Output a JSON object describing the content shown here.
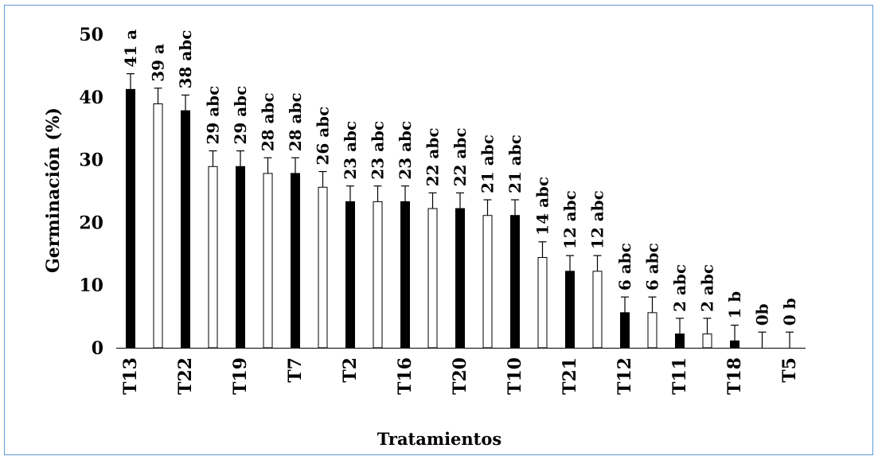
{
  "chart_data": {
    "type": "bar",
    "xlabel": "Tratamientos",
    "ylabel": "Germinación (%)",
    "ylim": [
      0,
      50
    ],
    "yticks": [
      0,
      10,
      20,
      30,
      40,
      50
    ],
    "grid": false,
    "bars": [
      {
        "value": 41.2,
        "error": 2.5,
        "label": "41 a",
        "fill": "black"
      },
      {
        "value": 38.9,
        "error": 2.5,
        "label": "39 a",
        "fill": "white"
      },
      {
        "value": 37.8,
        "error": 2.5,
        "label": "38 abc",
        "fill": "black"
      },
      {
        "value": 28.9,
        "error": 2.5,
        "label": "29 abc",
        "fill": "white"
      },
      {
        "value": 28.9,
        "error": 2.5,
        "label": "29 abc",
        "fill": "black"
      },
      {
        "value": 27.8,
        "error": 2.5,
        "label": "28 abc",
        "fill": "white"
      },
      {
        "value": 27.8,
        "error": 2.5,
        "label": "28 abc",
        "fill": "black"
      },
      {
        "value": 25.6,
        "error": 2.5,
        "label": "26 abc",
        "fill": "white"
      },
      {
        "value": 23.3,
        "error": 2.5,
        "label": "23 abc",
        "fill": "black"
      },
      {
        "value": 23.3,
        "error": 2.5,
        "label": "23 abc",
        "fill": "white"
      },
      {
        "value": 23.3,
        "error": 2.5,
        "label": "23 abc",
        "fill": "black"
      },
      {
        "value": 22.2,
        "error": 2.5,
        "label": "22 abc",
        "fill": "white"
      },
      {
        "value": 22.2,
        "error": 2.5,
        "label": "22 abc",
        "fill": "black"
      },
      {
        "value": 21.1,
        "error": 2.5,
        "label": "21 abc",
        "fill": "white"
      },
      {
        "value": 21.1,
        "error": 2.5,
        "label": "21 abc",
        "fill": "black"
      },
      {
        "value": 14.4,
        "error": 2.5,
        "label": "14 abc",
        "fill": "white"
      },
      {
        "value": 12.2,
        "error": 2.5,
        "label": "12 abc",
        "fill": "black"
      },
      {
        "value": 12.2,
        "error": 2.5,
        "label": "12 abc",
        "fill": "white"
      },
      {
        "value": 5.6,
        "error": 2.5,
        "label": "6 abc",
        "fill": "black"
      },
      {
        "value": 5.6,
        "error": 2.5,
        "label": "6 abc",
        "fill": "white"
      },
      {
        "value": 2.2,
        "error": 2.5,
        "label": "2 abc",
        "fill": "black"
      },
      {
        "value": 2.2,
        "error": 2.5,
        "label": "2 abc",
        "fill": "white"
      },
      {
        "value": 1.1,
        "error": 2.5,
        "label": "1 b",
        "fill": "black"
      },
      {
        "value": 0,
        "error": 2.5,
        "label": "0b",
        "fill": "white"
      },
      {
        "value": 0,
        "error": 2.5,
        "label": "0 b",
        "fill": "white"
      }
    ],
    "category_labels": [
      {
        "after_bar": 0,
        "text": "T13"
      },
      {
        "after_bar": 2,
        "text": "T22"
      },
      {
        "after_bar": 4,
        "text": "T19"
      },
      {
        "after_bar": 6,
        "text": "T7"
      },
      {
        "after_bar": 8,
        "text": "T2"
      },
      {
        "after_bar": 10,
        "text": "T16"
      },
      {
        "after_bar": 12,
        "text": "T20"
      },
      {
        "after_bar": 14,
        "text": "T10"
      },
      {
        "after_bar": 16,
        "text": "T21"
      },
      {
        "after_bar": 18,
        "text": "T12"
      },
      {
        "after_bar": 20,
        "text": "T11"
      },
      {
        "after_bar": 22,
        "text": "T18"
      },
      {
        "after_bar": 24,
        "text": "T5"
      }
    ]
  }
}
